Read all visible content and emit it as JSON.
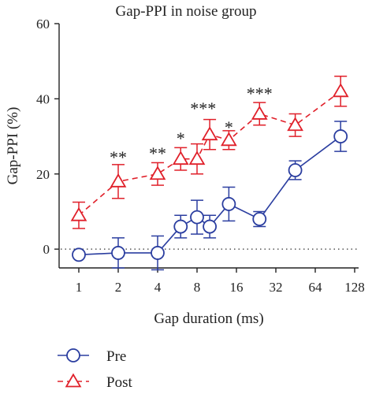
{
  "chart_data": {
    "type": "line",
    "title": "Gap-PPI in noise group",
    "xlabel": "Gap duration (ms)",
    "ylabel": "Gap-PPI (%)",
    "x_scale": "log2",
    "xlim": [
      1,
      128
    ],
    "ylim": [
      -5,
      60
    ],
    "x_ticks": [
      1,
      2,
      4,
      8,
      16,
      32,
      64,
      128
    ],
    "x_tick_labels": [
      "1",
      "2",
      "4",
      "8",
      "16",
      "32",
      "64",
      "128"
    ],
    "y_ticks": [
      0,
      20,
      40,
      60
    ],
    "y_tick_labels": [
      "0",
      "20",
      "40",
      "60"
    ],
    "reference_line": {
      "y": 0,
      "style": "dotted"
    },
    "legend_position": "bottom-left",
    "series": [
      {
        "name": "Pre",
        "color": "#2b3ea0",
        "marker": "circle",
        "line_style": "solid",
        "points": [
          {
            "x": 1,
            "y": -1.5,
            "err": 0
          },
          {
            "x": 2,
            "y": -1,
            "err": 4
          },
          {
            "x": 4,
            "y": -1,
            "err": 4.5
          },
          {
            "x": 6,
            "y": 6,
            "err": 3
          },
          {
            "x": 8,
            "y": 8.5,
            "err": 4.5
          },
          {
            "x": 10,
            "y": 6,
            "err": 3
          },
          {
            "x": 14,
            "y": 12,
            "err": 4.5
          },
          {
            "x": 24,
            "y": 8,
            "err": 2
          },
          {
            "x": 45,
            "y": 21,
            "err": 2.5
          },
          {
            "x": 100,
            "y": 30,
            "err": 4
          }
        ]
      },
      {
        "name": "Post",
        "color": "#e0202a",
        "marker": "triangle",
        "line_style": "dashed",
        "points": [
          {
            "x": 1,
            "y": 9,
            "err": 3.5
          },
          {
            "x": 2,
            "y": 18,
            "err": 4.5
          },
          {
            "x": 4,
            "y": 20,
            "err": 3
          },
          {
            "x": 6,
            "y": 24,
            "err": 3
          },
          {
            "x": 8,
            "y": 24,
            "err": 4
          },
          {
            "x": 10,
            "y": 30.5,
            "err": 4
          },
          {
            "x": 14,
            "y": 29,
            "err": 2.5
          },
          {
            "x": 24,
            "y": 36,
            "err": 3
          },
          {
            "x": 45,
            "y": 33,
            "err": 3
          },
          {
            "x": 100,
            "y": 42,
            "err": 4
          }
        ]
      }
    ],
    "annotations": [
      {
        "x": 2,
        "y": 25,
        "text": "**"
      },
      {
        "x": 4,
        "y": 26,
        "text": "**"
      },
      {
        "x": 6,
        "y": 30,
        "text": "*"
      },
      {
        "x": 8.9,
        "y": 38,
        "text": "***"
      },
      {
        "x": 14,
        "y": 33,
        "text": "*"
      },
      {
        "x": 24,
        "y": 42,
        "text": "***"
      }
    ]
  }
}
